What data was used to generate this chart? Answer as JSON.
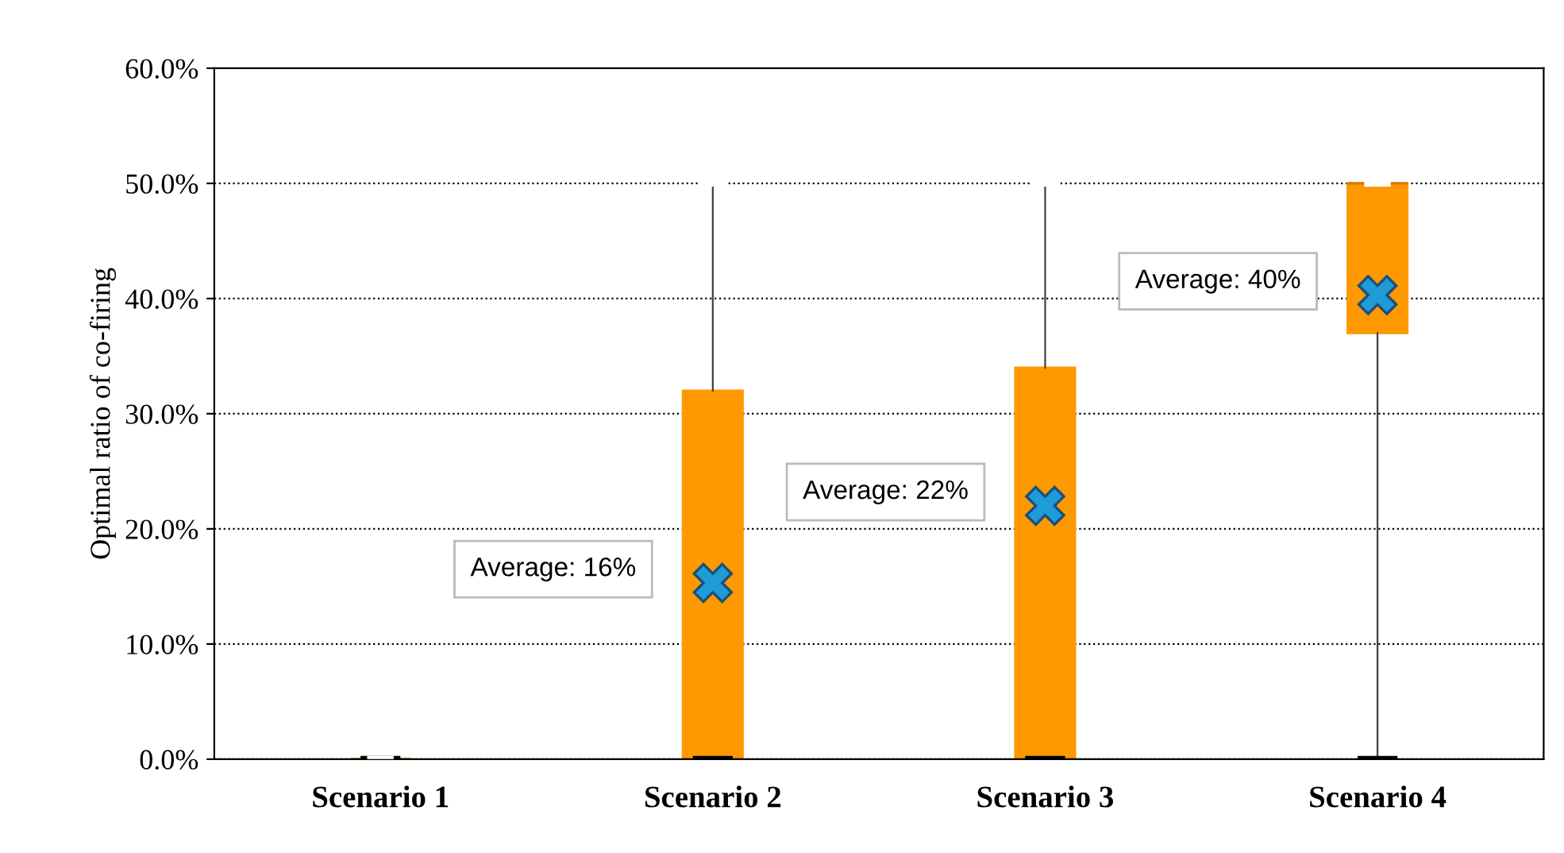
{
  "chart_data": {
    "type": "box",
    "ylabel": "Optimal ratio of co-firing",
    "categories": [
      "Scenario 1",
      "Scenario 2",
      "Scenario 3",
      "Scenario 4"
    ],
    "boxes": [
      {
        "low": 0,
        "q1": 0,
        "median": 0,
        "q3": 0,
        "high": 0
      },
      {
        "low": 0,
        "q1": 0,
        "median": 0,
        "q3": 32,
        "high": 50,
        "mean": 15.3
      },
      {
        "low": 0,
        "q1": 0,
        "median": 0,
        "q3": 34,
        "high": 50,
        "mean": 22
      },
      {
        "low": 0,
        "q1": 37,
        "median": 50,
        "q3": 50,
        "high": 50,
        "mean": 40.3
      }
    ],
    "color": "#ff9900",
    "marker": "cross",
    "ylim": [
      0,
      60
    ],
    "yticks": [
      {
        "value": 0,
        "label": "0.0%"
      },
      {
        "value": 10,
        "label": "10.0%"
      },
      {
        "value": 20,
        "label": "20.0%"
      },
      {
        "value": 30,
        "label": "30.0%"
      },
      {
        "value": 40,
        "label": "40.0%"
      },
      {
        "value": 50,
        "label": "50.0%"
      },
      {
        "value": 60,
        "label": "60.0%"
      }
    ],
    "grid": "y",
    "annotations": [
      "Average: 16%",
      "Average: 22%",
      "Average: 40%"
    ]
  }
}
